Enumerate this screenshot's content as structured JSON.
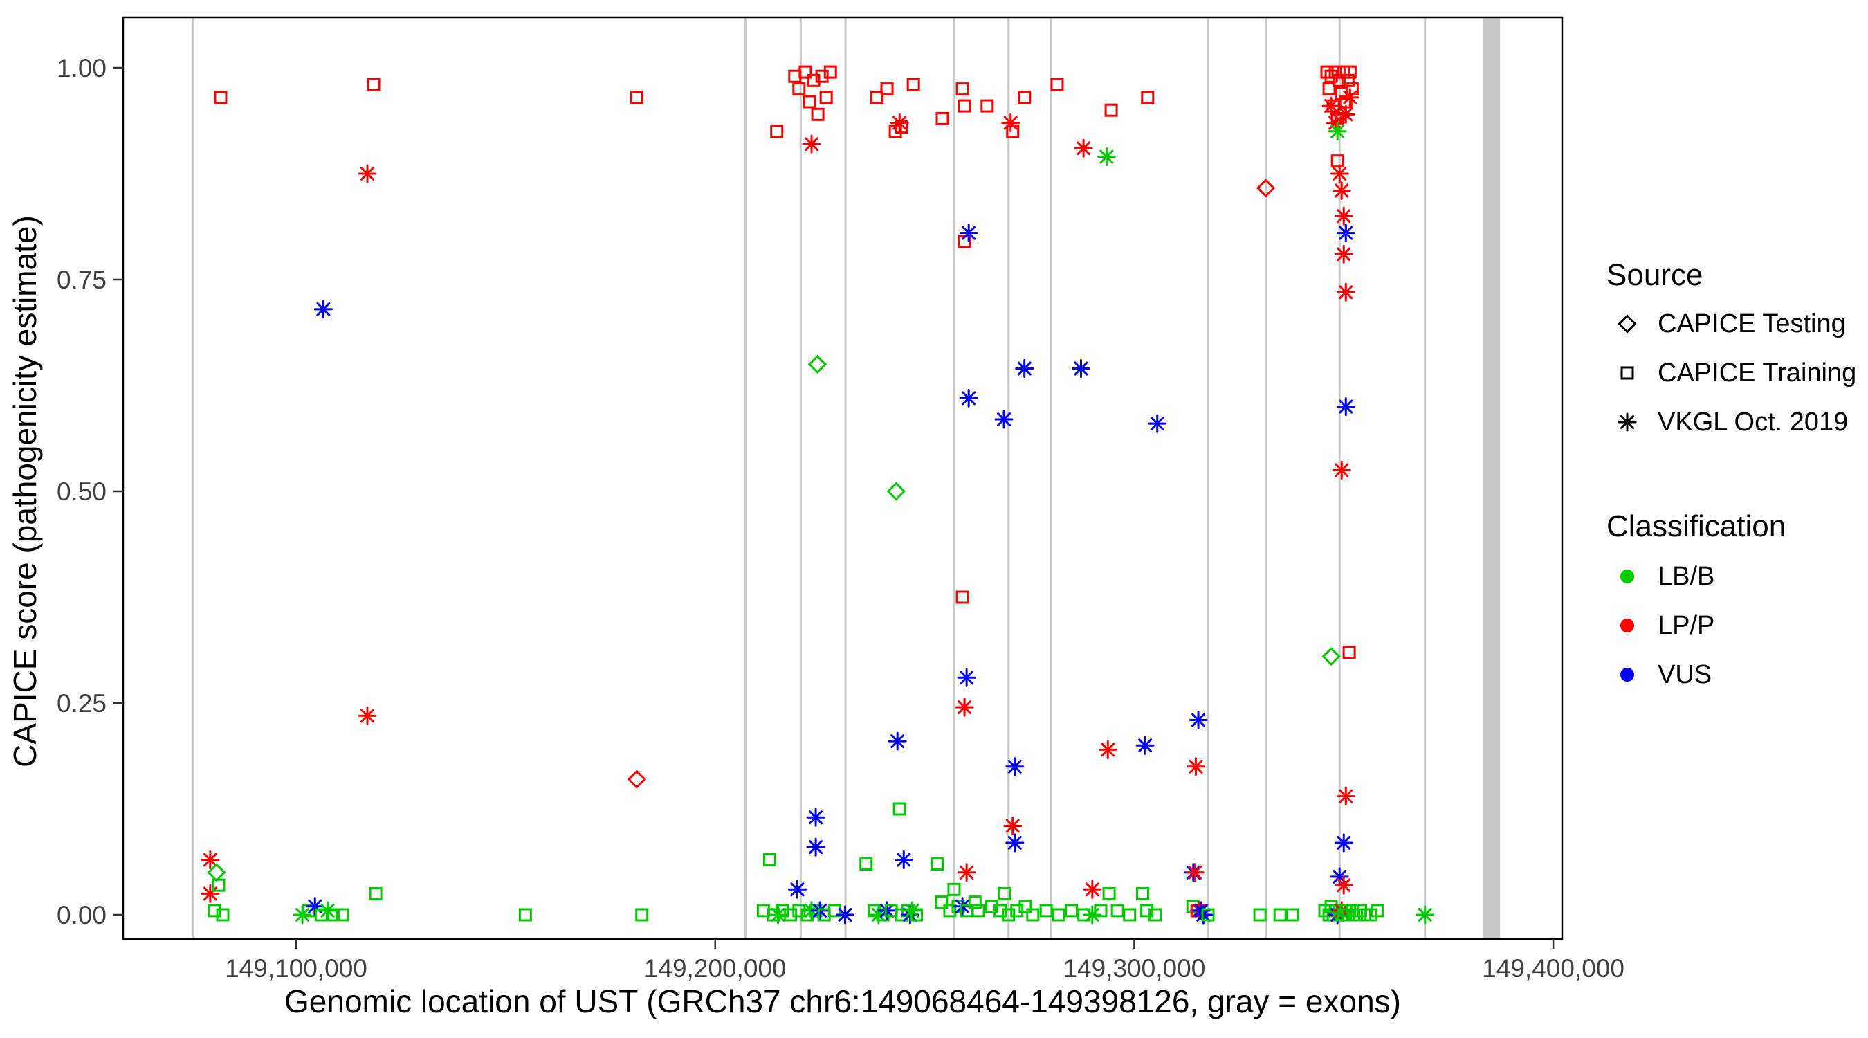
{
  "chart_data": {
    "type": "scatter",
    "title": "",
    "xlabel": "Genomic location of UST (GRCh37 chr6:149068464-149398126, gray = exons)",
    "ylabel": "CAPICE score (pathogenicity estimate)",
    "xlim": [
      149058700,
      149402100
    ],
    "ylim": [
      0,
      1
    ],
    "grid": false,
    "panel": {
      "background": "#FFFFFF",
      "border_color": "#000000",
      "exon_color": "#C8C8C8"
    },
    "x_axis": {
      "ticks": [
        {
          "v": 149100000,
          "label": "149,100,000"
        },
        {
          "v": 149200000,
          "label": "149,200,000"
        },
        {
          "v": 149300000,
          "label": "149,300,000"
        },
        {
          "v": 149400000,
          "label": "149,400,000"
        }
      ]
    },
    "y_axis": {
      "ticks": [
        {
          "v": 0.0,
          "label": "0.00"
        },
        {
          "v": 0.25,
          "label": "0.25"
        },
        {
          "v": 0.5,
          "label": "0.50"
        },
        {
          "v": 0.75,
          "label": "0.75"
        },
        {
          "v": 1.0,
          "label": "1.00"
        }
      ]
    },
    "classes": {
      "LBB": {
        "label": "LB/B",
        "color": "#00CC00"
      },
      "LPP": {
        "label": "LP/P",
        "color": "#FF0000"
      },
      "VUS": {
        "label": "VUS",
        "color": "#0000FF"
      }
    },
    "shapes": {
      "di": {
        "label": "CAPICE Testing"
      },
      "sq": {
        "label": "CAPICE Training"
      },
      "as": {
        "label": "VKGL Oct. 2019"
      }
    },
    "legend": {
      "source_title": "Source",
      "source_items": [
        {
          "shape": "di",
          "label": "CAPICE Testing"
        },
        {
          "shape": "sq",
          "label": "CAPICE Training"
        },
        {
          "shape": "as",
          "label": "VKGL Oct. 2019"
        }
      ],
      "classification_title": "Classification",
      "classification_items": [
        {
          "key": "LBB",
          "label": "LB/B"
        },
        {
          "key": "LPP",
          "label": "LP/P"
        },
        {
          "key": "VUS",
          "label": "VUS"
        }
      ]
    },
    "exons": [
      {
        "x": 149075500,
        "width_bp": 500
      },
      {
        "x": 149207200,
        "width_bp": 500
      },
      {
        "x": 149220400,
        "width_bp": 500
      },
      {
        "x": 149231100,
        "width_bp": 500
      },
      {
        "x": 149257000,
        "width_bp": 500
      },
      {
        "x": 149270000,
        "width_bp": 500
      },
      {
        "x": 149280100,
        "width_bp": 500
      },
      {
        "x": 149317600,
        "width_bp": 500
      },
      {
        "x": 149331400,
        "width_bp": 500
      },
      {
        "x": 149349000,
        "width_bp": 500
      },
      {
        "x": 149369400,
        "width_bp": 500
      },
      {
        "x": 149385300,
        "width_bp": 4000
      }
    ],
    "point_format": [
      "x_genomic_position",
      "capice_score",
      "shape(sq=square,di=diamond,as=asterisk)",
      "classification(LBB,LPP,VUS)"
    ],
    "points": [
      [
        149079500,
        0.065,
        "as",
        "LPP"
      ],
      [
        149079500,
        0.025,
        "as",
        "LPP"
      ],
      [
        149081000,
        0.05,
        "di",
        "LBB"
      ],
      [
        149081500,
        0.035,
        "sq",
        "LBB"
      ],
      [
        149080500,
        0.005,
        "sq",
        "LBB"
      ],
      [
        149082500,
        0.0,
        "sq",
        "LBB"
      ],
      [
        149082000,
        0.965,
        "sq",
        "LPP"
      ],
      [
        149101500,
        0.0,
        "as",
        "LBB"
      ],
      [
        149103000,
        0.005,
        "sq",
        "LBB"
      ],
      [
        149104500,
        0.01,
        "as",
        "VUS"
      ],
      [
        149106000,
        0.0,
        "sq",
        "LBB"
      ],
      [
        149106500,
        0.715,
        "as",
        "VUS"
      ],
      [
        149107500,
        0.005,
        "as",
        "LBB"
      ],
      [
        149109000,
        0.0,
        "sq",
        "LBB"
      ],
      [
        149111000,
        0.0,
        "sq",
        "LBB"
      ],
      [
        149118500,
        0.98,
        "sq",
        "LPP"
      ],
      [
        149117000,
        0.875,
        "as",
        "LPP"
      ],
      [
        149117000,
        0.235,
        "as",
        "LPP"
      ],
      [
        149119000,
        0.025,
        "sq",
        "LBB"
      ],
      [
        149154700,
        0.0,
        "sq",
        "LBB"
      ],
      [
        149181300,
        0.965,
        "sq",
        "LPP"
      ],
      [
        149181300,
        0.16,
        "di",
        "LPP"
      ],
      [
        149182500,
        0.0,
        "sq",
        "LBB"
      ],
      [
        149214700,
        0.925,
        "sq",
        "LPP"
      ],
      [
        149219000,
        0.99,
        "sq",
        "LPP"
      ],
      [
        149220000,
        0.975,
        "sq",
        "LPP"
      ],
      [
        149221500,
        0.995,
        "sq",
        "LPP"
      ],
      [
        149222500,
        0.96,
        "sq",
        "LPP"
      ],
      [
        149223500,
        0.985,
        "sq",
        "LPP"
      ],
      [
        149224500,
        0.945,
        "sq",
        "LPP"
      ],
      [
        149225500,
        0.99,
        "sq",
        "LPP"
      ],
      [
        149226500,
        0.965,
        "sq",
        "LPP"
      ],
      [
        149227500,
        0.995,
        "sq",
        "LPP"
      ],
      [
        149223000,
        0.91,
        "as",
        "LPP"
      ],
      [
        149224400,
        0.65,
        "di",
        "LBB"
      ],
      [
        149213000,
        0.065,
        "sq",
        "LBB"
      ],
      [
        149224000,
        0.115,
        "as",
        "VUS"
      ],
      [
        149224000,
        0.08,
        "as",
        "VUS"
      ],
      [
        149219600,
        0.03,
        "as",
        "VUS"
      ],
      [
        149211500,
        0.005,
        "sq",
        "LBB"
      ],
      [
        149214000,
        0.0,
        "sq",
        "LBB"
      ],
      [
        149215000,
        0.0,
        "as",
        "LBB"
      ],
      [
        149216000,
        0.005,
        "sq",
        "LBB"
      ],
      [
        149218000,
        0.0,
        "sq",
        "LBB"
      ],
      [
        149220000,
        0.005,
        "sq",
        "LBB"
      ],
      [
        149222000,
        0.0,
        "sq",
        "LBB"
      ],
      [
        149223000,
        0.005,
        "as",
        "LBB"
      ],
      [
        149224000,
        0.005,
        "sq",
        "LBB"
      ],
      [
        149225000,
        0.005,
        "as",
        "VUS"
      ],
      [
        149226000,
        0.0,
        "sq",
        "LBB"
      ],
      [
        149228500,
        0.005,
        "sq",
        "LBB"
      ],
      [
        149231000,
        0.0,
        "as",
        "VUS"
      ],
      [
        149238600,
        0.965,
        "sq",
        "LPP"
      ],
      [
        149241000,
        0.975,
        "sq",
        "LPP"
      ],
      [
        149243000,
        0.925,
        "sq",
        "LPP"
      ],
      [
        149244500,
        0.93,
        "sq",
        "LPP"
      ],
      [
        149244000,
        0.935,
        "as",
        "LPP"
      ],
      [
        149247300,
        0.98,
        "sq",
        "LPP"
      ],
      [
        149243200,
        0.5,
        "di",
        "LBB"
      ],
      [
        149243500,
        0.205,
        "as",
        "VUS"
      ],
      [
        149244000,
        0.125,
        "sq",
        "LBB"
      ],
      [
        149245000,
        0.065,
        "as",
        "VUS"
      ],
      [
        149236000,
        0.06,
        "sq",
        "LBB"
      ],
      [
        149238000,
        0.005,
        "sq",
        "LBB"
      ],
      [
        149239000,
        0.0,
        "as",
        "LBB"
      ],
      [
        149240000,
        0.0,
        "sq",
        "LBB"
      ],
      [
        149241000,
        0.005,
        "as",
        "VUS"
      ],
      [
        149242000,
        0.005,
        "sq",
        "LBB"
      ],
      [
        149244500,
        0.0,
        "sq",
        "LBB"
      ],
      [
        149246000,
        0.005,
        "sq",
        "LBB"
      ],
      [
        149246500,
        0.0,
        "as",
        "VUS"
      ],
      [
        149247000,
        0.005,
        "as",
        "LBB"
      ],
      [
        149248000,
        0.0,
        "sq",
        "LBB"
      ],
      [
        149254200,
        0.94,
        "sq",
        "LPP"
      ],
      [
        149259000,
        0.975,
        "sq",
        "LPP"
      ],
      [
        149259500,
        0.955,
        "sq",
        "LPP"
      ],
      [
        149259500,
        0.795,
        "sq",
        "LPP"
      ],
      [
        149260500,
        0.805,
        "as",
        "VUS"
      ],
      [
        149260500,
        0.61,
        "as",
        "VUS"
      ],
      [
        149259000,
        0.375,
        "sq",
        "LPP"
      ],
      [
        149260000,
        0.28,
        "as",
        "VUS"
      ],
      [
        149259500,
        0.245,
        "as",
        "LPP"
      ],
      [
        149253000,
        0.06,
        "sq",
        "LBB"
      ],
      [
        149260000,
        0.05,
        "as",
        "LPP"
      ],
      [
        149254000,
        0.015,
        "sq",
        "LBB"
      ],
      [
        149256000,
        0.005,
        "sq",
        "LBB"
      ],
      [
        149257000,
        0.03,
        "sq",
        "LBB"
      ],
      [
        149258000,
        0.01,
        "sq",
        "LBB"
      ],
      [
        149259000,
        0.01,
        "as",
        "VUS"
      ],
      [
        149260000,
        0.005,
        "sq",
        "LBB"
      ],
      [
        149262000,
        0.015,
        "sq",
        "LBB"
      ],
      [
        149262800,
        0.005,
        "sq",
        "LBB"
      ],
      [
        149264900,
        0.955,
        "sq",
        "LPP"
      ],
      [
        149270500,
        0.935,
        "as",
        "LPP"
      ],
      [
        149271000,
        0.925,
        "sq",
        "LPP"
      ],
      [
        149273800,
        0.965,
        "sq",
        "LPP"
      ],
      [
        149273800,
        0.645,
        "as",
        "VUS"
      ],
      [
        149268900,
        0.585,
        "as",
        "VUS"
      ],
      [
        149271500,
        0.175,
        "as",
        "VUS"
      ],
      [
        149271000,
        0.105,
        "as",
        "LPP"
      ],
      [
        149271500,
        0.085,
        "as",
        "VUS"
      ],
      [
        149266000,
        0.01,
        "sq",
        "LBB"
      ],
      [
        149268000,
        0.005,
        "sq",
        "LBB"
      ],
      [
        149269000,
        0.025,
        "sq",
        "LBB"
      ],
      [
        149270000,
        0.0,
        "sq",
        "LBB"
      ],
      [
        149272000,
        0.005,
        "sq",
        "LBB"
      ],
      [
        149274000,
        0.01,
        "sq",
        "LBB"
      ],
      [
        149275800,
        0.0,
        "sq",
        "LBB"
      ],
      [
        149281600,
        0.98,
        "sq",
        "LPP"
      ],
      [
        149287900,
        0.905,
        "as",
        "LPP"
      ],
      [
        149293400,
        0.895,
        "as",
        "LBB"
      ],
      [
        149294500,
        0.95,
        "sq",
        "LPP"
      ],
      [
        149287300,
        0.645,
        "as",
        "VUS"
      ],
      [
        149293700,
        0.195,
        "as",
        "LPP"
      ],
      [
        149290000,
        0.03,
        "as",
        "LPP"
      ],
      [
        149279000,
        0.005,
        "sq",
        "LBB"
      ],
      [
        149282000,
        0.0,
        "sq",
        "LBB"
      ],
      [
        149285000,
        0.005,
        "sq",
        "LBB"
      ],
      [
        149288000,
        0.0,
        "sq",
        "LBB"
      ],
      [
        149290000,
        0.0,
        "as",
        "LBB"
      ],
      [
        149292000,
        0.005,
        "sq",
        "LBB"
      ],
      [
        149294000,
        0.025,
        "sq",
        "LBB"
      ],
      [
        149296000,
        0.005,
        "sq",
        "LBB"
      ],
      [
        149298900,
        0.0,
        "sq",
        "LBB"
      ],
      [
        149303200,
        0.965,
        "sq",
        "LPP"
      ],
      [
        149305500,
        0.58,
        "as",
        "VUS"
      ],
      [
        149302600,
        0.2,
        "as",
        "VUS"
      ],
      [
        149315300,
        0.23,
        "as",
        "VUS"
      ],
      [
        149314700,
        0.175,
        "as",
        "LPP"
      ],
      [
        149314100,
        0.05,
        "as",
        "VUS"
      ],
      [
        149314500,
        0.05,
        "as",
        "LPP"
      ],
      [
        149302000,
        0.025,
        "sq",
        "LBB"
      ],
      [
        149303000,
        0.005,
        "sq",
        "LBB"
      ],
      [
        149305000,
        0.0,
        "sq",
        "LBB"
      ],
      [
        149314000,
        0.01,
        "sq",
        "LBB"
      ],
      [
        149315000,
        0.005,
        "sq",
        "LPP"
      ],
      [
        149315500,
        0.005,
        "as",
        "LPP"
      ],
      [
        149316000,
        0.005,
        "as",
        "VUS"
      ],
      [
        149316500,
        0.0,
        "as",
        "VUS"
      ],
      [
        149317600,
        0.0,
        "sq",
        "LBB"
      ],
      [
        149331400,
        0.858,
        "di",
        "LPP"
      ],
      [
        149330000,
        0.0,
        "sq",
        "LBB"
      ],
      [
        149334800,
        0.0,
        "sq",
        "LBB"
      ],
      [
        149337700,
        0.0,
        "sq",
        "LBB"
      ],
      [
        149346000,
        0.995,
        "sq",
        "LPP"
      ],
      [
        149346500,
        0.975,
        "sq",
        "LPP"
      ],
      [
        149347000,
        0.99,
        "sq",
        "LPP"
      ],
      [
        149347500,
        0.955,
        "sq",
        "LPP"
      ],
      [
        149348000,
        0.995,
        "sq",
        "LPP"
      ],
      [
        149348500,
        0.94,
        "sq",
        "LPP"
      ],
      [
        149349000,
        0.985,
        "sq",
        "LPP"
      ],
      [
        149349500,
        0.97,
        "sq",
        "LPP"
      ],
      [
        149350000,
        0.995,
        "sq",
        "LPP"
      ],
      [
        149350500,
        0.96,
        "sq",
        "LPP"
      ],
      [
        149351000,
        0.985,
        "sq",
        "LPP"
      ],
      [
        149351500,
        0.995,
        "sq",
        "LPP"
      ],
      [
        149352000,
        0.975,
        "sq",
        "LPP"
      ],
      [
        149348500,
        0.89,
        "sq",
        "LPP"
      ],
      [
        149347000,
        0.955,
        "as",
        "LPP"
      ],
      [
        149348000,
        0.935,
        "as",
        "LPP"
      ],
      [
        149350500,
        0.945,
        "as",
        "LPP"
      ],
      [
        149351500,
        0.965,
        "as",
        "LPP"
      ],
      [
        149349000,
        0.875,
        "as",
        "LPP"
      ],
      [
        149349500,
        0.855,
        "as",
        "LPP"
      ],
      [
        149350000,
        0.825,
        "as",
        "LPP"
      ],
      [
        149350000,
        0.78,
        "as",
        "LPP"
      ],
      [
        149350500,
        0.735,
        "as",
        "LPP"
      ],
      [
        149349500,
        0.945,
        "di",
        "LPP"
      ],
      [
        149348500,
        0.925,
        "as",
        "LBB"
      ],
      [
        149350500,
        0.805,
        "as",
        "VUS"
      ],
      [
        149350500,
        0.6,
        "as",
        "VUS"
      ],
      [
        149349500,
        0.525,
        "as",
        "LPP"
      ],
      [
        149347000,
        0.305,
        "di",
        "LBB"
      ],
      [
        149351300,
        0.31,
        "sq",
        "LPP"
      ],
      [
        149350500,
        0.14,
        "as",
        "LPP"
      ],
      [
        149350000,
        0.085,
        "as",
        "VUS"
      ],
      [
        149349000,
        0.045,
        "as",
        "VUS"
      ],
      [
        149350000,
        0.035,
        "as",
        "LPP"
      ],
      [
        149345500,
        0.005,
        "sq",
        "LBB"
      ],
      [
        149346500,
        0.0,
        "sq",
        "LBB"
      ],
      [
        149347000,
        0.01,
        "sq",
        "LBB"
      ],
      [
        149347500,
        0.0,
        "sq",
        "LBB"
      ],
      [
        149348000,
        0.005,
        "sq",
        "LBB"
      ],
      [
        149348500,
        0.0,
        "as",
        "VUS"
      ],
      [
        149349000,
        0.005,
        "sq",
        "LBB"
      ],
      [
        149349500,
        0.0,
        "sq",
        "LBB"
      ],
      [
        149349500,
        0.005,
        "as",
        "LPP"
      ],
      [
        149350000,
        0.0,
        "sq",
        "LBB"
      ],
      [
        149350500,
        0.005,
        "sq",
        "LBB"
      ],
      [
        149351000,
        0.0,
        "sq",
        "LBB"
      ],
      [
        149352000,
        0.005,
        "sq",
        "LBB"
      ],
      [
        149353000,
        0.0,
        "sq",
        "LBB"
      ],
      [
        149354000,
        0.005,
        "sq",
        "LBB"
      ],
      [
        149355000,
        0.0,
        "sq",
        "LBB"
      ],
      [
        149356500,
        0.0,
        "sq",
        "LBB"
      ],
      [
        149358000,
        0.005,
        "sq",
        "LBB"
      ],
      [
        149369400,
        0.0,
        "as",
        "LBB"
      ]
    ]
  }
}
